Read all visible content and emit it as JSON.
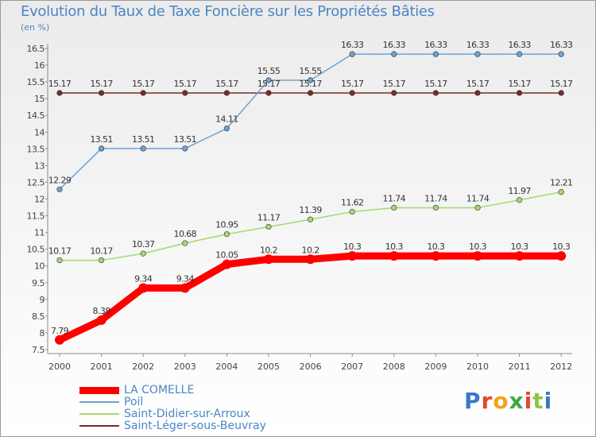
{
  "title": "Evolution du Taux de Taxe Foncière sur les Propriétés Bâties",
  "unit_label": "(en %)",
  "logo_text": "Proxiti",
  "chart_data": {
    "type": "line",
    "title": "Evolution du Taux de Taxe Foncière sur les Propriétés Bâties",
    "ylabel": "(en %)",
    "xlabel": "",
    "x": [
      "2000",
      "2001",
      "2002",
      "2003",
      "2004",
      "2005",
      "2006",
      "2007",
      "2008",
      "2009",
      "2010",
      "2011",
      "2012"
    ],
    "ylim": [
      7.5,
      16.5
    ],
    "yticks": [
      "7.5",
      "8",
      "8.5",
      "9",
      "9.5",
      "10",
      "10.5",
      "11",
      "11.5",
      "12",
      "12.5",
      "13",
      "13.5",
      "14",
      "14.5",
      "15",
      "15.5",
      "16",
      "16.5"
    ],
    "grid": false,
    "legend_position": "bottom-left",
    "series": [
      {
        "name": "LA COMELLE",
        "color": "#ff0000",
        "values": [
          7.79,
          8.38,
          9.34,
          9.34,
          10.05,
          10.2,
          10.2,
          10.3,
          10.3,
          10.3,
          10.3,
          10.3,
          10.3
        ],
        "labels": [
          "7.79",
          "8.38",
          "9.34",
          "9.34",
          "10.05",
          "10.2",
          "10.2",
          "10.3",
          "10.3",
          "10.3",
          "10.3",
          "10.3",
          "10.3"
        ]
      },
      {
        "name": "Poil",
        "color": "#6ea2d2",
        "values": [
          12.29,
          13.51,
          13.51,
          13.51,
          14.11,
          15.55,
          15.55,
          16.33,
          16.33,
          16.33,
          16.33,
          16.33,
          16.33
        ],
        "labels": [
          "12.29",
          "13.51",
          "13.51",
          "13.51",
          "14.11",
          "15.55",
          "15.55",
          "16.33",
          "16.33",
          "16.33",
          "16.33",
          "16.33",
          "16.33"
        ]
      },
      {
        "name": "Saint-Didier-sur-Arroux",
        "color": "#a6d86e",
        "values": [
          10.17,
          10.17,
          10.37,
          10.68,
          10.95,
          11.17,
          11.39,
          11.62,
          11.74,
          11.74,
          11.74,
          11.97,
          12.21
        ],
        "labels": [
          "10.17",
          "10.17",
          "10.37",
          "10.68",
          "10.95",
          "11.17",
          "11.39",
          "11.62",
          "11.74",
          "11.74",
          "11.74",
          "11.97",
          "12.21"
        ]
      },
      {
        "name": "Saint-Léger-sous-Beuvray",
        "color": "#7a2a2a",
        "values": [
          15.17,
          15.17,
          15.17,
          15.17,
          15.17,
          15.17,
          15.17,
          15.17,
          15.17,
          15.17,
          15.17,
          15.17,
          15.17
        ],
        "labels": [
          "15.17",
          "15.17",
          "15.17",
          "15.17",
          "15.17",
          "15.17",
          "15.17",
          "15.17",
          "15.17",
          "15.17",
          "15.17",
          "15.17",
          "15.17"
        ]
      }
    ]
  }
}
